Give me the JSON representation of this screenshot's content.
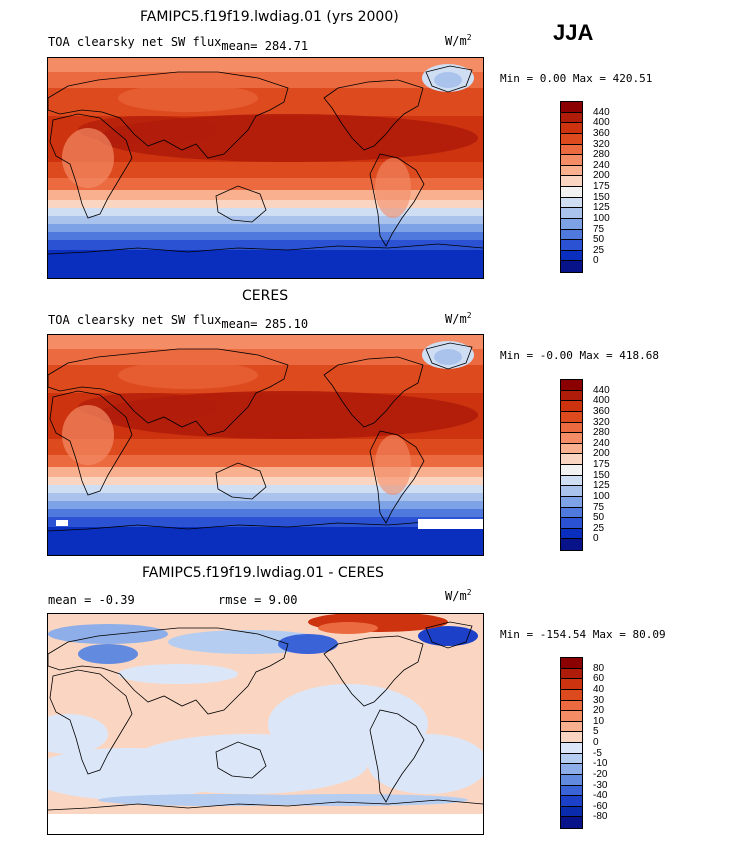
{
  "season": "JJA",
  "units": "W/m",
  "units_sup": "2",
  "panels": [
    {
      "title": "FAMIPC5.f19f19.lwdiag.01 (yrs 2000)",
      "subtitle": "TOA clearsky net SW flux",
      "mean_label": "mean= 284.71",
      "stat": "Min =   0.00 Max = 420.51"
    },
    {
      "title": "CERES",
      "subtitle": "TOA clearsky net SW flux",
      "mean_label": "mean= 285.10",
      "stat": "Min =  -0.00 Max = 418.68"
    },
    {
      "title": "FAMIPC5.f19f19.lwdiag.01 - CERES",
      "mean_text": "mean =  -0.39",
      "rmse_text": "rmse =   9.00",
      "stat": "Min = -154.54 Max =  80.09"
    }
  ],
  "chart_data": [
    {
      "type": "heatmap",
      "title": "FAMIPC5.f19f19.lwdiag.01 (yrs 2000)",
      "variable": "TOA clearsky net SW flux",
      "units": "W/m2",
      "mean": 284.71,
      "min": 0.0,
      "max": 420.51,
      "colorbar_levels": [
        "440",
        "400",
        "360",
        "320",
        "280",
        "240",
        "200",
        "175",
        "150",
        "125",
        "100",
        "75",
        "50",
        "25",
        "0"
      ],
      "colors": [
        "#8b0000",
        "#b01c0a",
        "#cc330e",
        "#dd4a1e",
        "#ec6a40",
        "#f48c65",
        "#f8b08f",
        "#fad6c2",
        "#f2f2f2",
        "#d0def3",
        "#a9c3ed",
        "#7ea2e6",
        "#5079dd",
        "#2a52d2",
        "#0a2fbf",
        "#08138a"
      ]
    },
    {
      "type": "heatmap",
      "title": "CERES",
      "variable": "TOA clearsky net SW flux",
      "units": "W/m2",
      "mean": 285.1,
      "min": -0.0,
      "max": 418.68,
      "colorbar_levels": [
        "440",
        "400",
        "360",
        "320",
        "280",
        "240",
        "200",
        "175",
        "150",
        "125",
        "100",
        "75",
        "50",
        "25",
        "0"
      ],
      "colors": [
        "#8b0000",
        "#b01c0a",
        "#cc330e",
        "#dd4a1e",
        "#ec6a40",
        "#f48c65",
        "#f8b08f",
        "#fad6c2",
        "#f2f2f2",
        "#d0def3",
        "#a9c3ed",
        "#7ea2e6",
        "#5079dd",
        "#2a52d2",
        "#0a2fbf",
        "#08138a"
      ]
    },
    {
      "type": "heatmap",
      "title": "FAMIPC5.f19f19.lwdiag.01 - CERES",
      "units": "W/m2",
      "mean": -0.39,
      "rmse": 9.0,
      "min": -154.54,
      "max": 80.09,
      "colorbar_levels": [
        "80",
        "60",
        "40",
        "30",
        "20",
        "10",
        "5",
        "0",
        "-5",
        "-10",
        "-20",
        "-30",
        "-40",
        "-60",
        "-80"
      ],
      "colors": [
        "#8b0000",
        "#b01c0a",
        "#cc330e",
        "#dd4a1e",
        "#ec6a40",
        "#f48c65",
        "#f8b08f",
        "#fad6c2",
        "#dbe7f8",
        "#b5cdf0",
        "#8daee8",
        "#628be0",
        "#3b63d8",
        "#1d40c8",
        "#0a2bab",
        "#08138a"
      ]
    }
  ]
}
